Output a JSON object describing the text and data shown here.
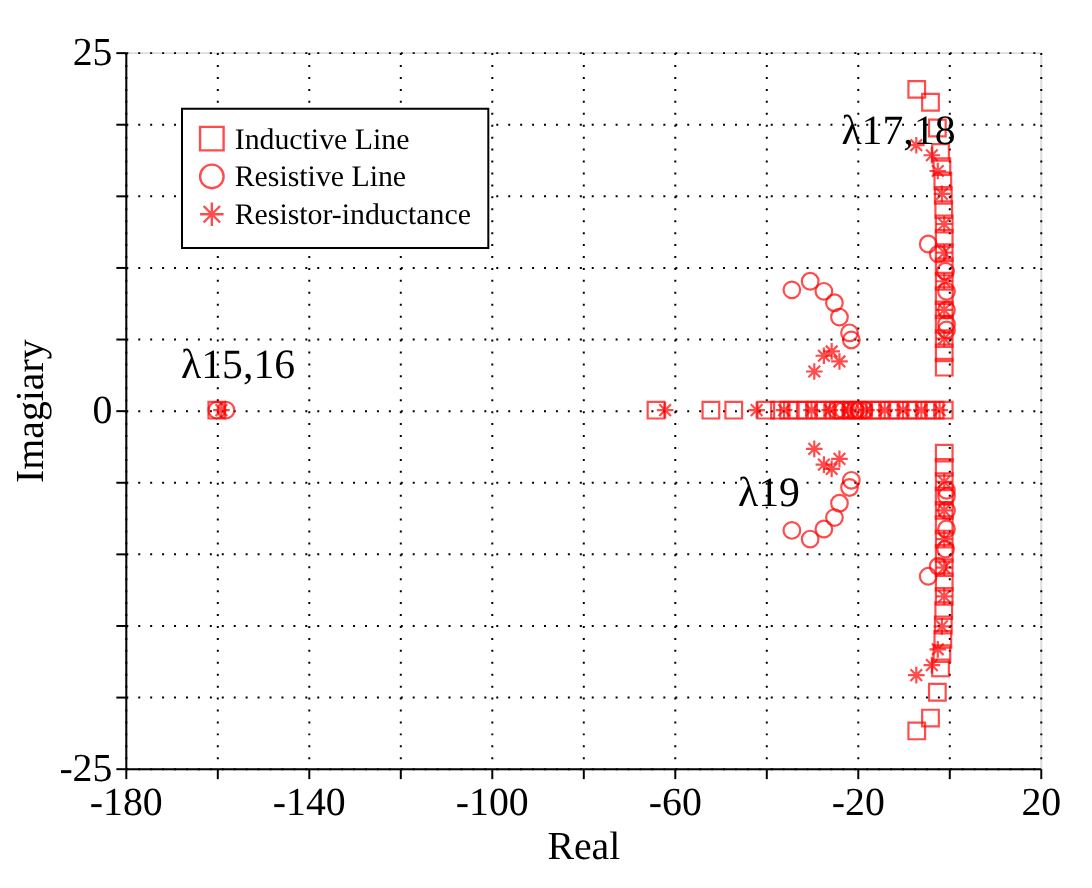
{
  "chart_data": {
    "type": "scatter",
    "xlabel": "Real",
    "ylabel": "Imagiary",
    "xlim": [
      -180,
      20
    ],
    "ylim": [
      -25,
      25
    ],
    "xticks": [
      -180,
      {
        "value": -160,
        "label": null
      },
      -140,
      {
        "value": -120,
        "label": null
      },
      -100,
      {
        "value": -80,
        "label": null
      },
      -60,
      {
        "value": -40,
        "label": null
      },
      -20,
      {
        "value": 0,
        "label": null
      },
      20
    ],
    "yticks": [
      -25,
      {
        "value": -20,
        "label": null
      },
      {
        "value": -15,
        "label": null
      },
      {
        "value": -10,
        "label": null
      },
      {
        "value": -5,
        "label": null
      },
      0,
      {
        "value": 5,
        "label": null
      },
      {
        "value": 10,
        "label": null
      },
      {
        "value": 15,
        "label": null
      },
      {
        "value": 20,
        "label": null
      },
      25
    ],
    "grid": true,
    "legend": "top left",
    "annotations": [
      "λ15,16",
      "λ17,18",
      "λ19"
    ],
    "series": [
      {
        "name": "Inductive Line",
        "color": "#ff0000",
        "marker": "square",
        "x": [
          -160,
          -64,
          -52,
          -47,
          -40,
          -37,
          -35,
          -33,
          -31,
          -29,
          -27,
          -25,
          -23,
          -21,
          -19,
          -17,
          -15,
          -13,
          -11,
          -9,
          -7,
          -5,
          -3,
          -1,
          -7,
          -4,
          -2.5,
          -1.8,
          -1.5,
          -1.3,
          -1.2,
          -1.1,
          -1,
          -1,
          -1,
          -1,
          -1,
          -1,
          -1,
          -1,
          -1,
          -1,
          -1,
          -7,
          -4,
          -2.5,
          -1.8,
          -1.5,
          -1.3,
          -1.2,
          -1.1,
          -1,
          -1,
          -1,
          -1,
          -1,
          -1,
          -1,
          -1,
          -1,
          -1,
          -1
        ],
        "values": [
          0,
          0,
          0,
          0,
          0,
          0,
          0,
          0,
          0,
          0,
          0,
          0,
          0,
          0,
          0,
          0,
          0,
          0,
          0,
          0,
          0,
          0,
          0,
          0,
          22.4,
          21.5,
          19.7,
          18,
          17,
          16,
          15,
          14,
          13,
          12,
          11,
          10,
          9,
          8,
          7,
          6,
          5,
          4,
          3,
          -22.4,
          -21.5,
          -19.7,
          -18,
          -17,
          -16,
          -15,
          -14,
          -13,
          -12,
          -11,
          -10,
          -9,
          -8,
          -7,
          -6,
          -5,
          -4,
          -3
        ]
      },
      {
        "name": "Resistive Line",
        "color": "#ff0000",
        "marker": "circle",
        "x": [
          -160,
          -158,
          -24.5,
          -23,
          -21.5,
          -20.5,
          -19.6,
          -18.5,
          -34.3,
          -30.3,
          -27.3,
          -25,
          -23.9,
          -21.7,
          -21.3,
          -4.5,
          -2.3,
          -0.7,
          -0.5,
          -0.5,
          -0.5,
          -0.5,
          -34.3,
          -30.3,
          -27.3,
          -25,
          -23.9,
          -21.7,
          -21.3,
          -4.5,
          -2.3,
          -0.7,
          -0.5,
          -0.5,
          -0.5,
          -0.5
        ],
        "values": [
          0,
          0,
          0,
          0,
          0,
          0,
          0,
          0,
          8.4,
          9,
          8.3,
          7.5,
          6.5,
          5.4,
          4.9,
          11.6,
          10.9,
          9.7,
          8.3,
          7,
          6,
          5.6,
          -8.4,
          -9,
          -8.3,
          -7.5,
          -6.5,
          -5.4,
          -4.9,
          -11.6,
          -10.9,
          -9.7,
          -8.3,
          -7,
          -6,
          -5.6
        ]
      },
      {
        "name": "Resistor-inductance",
        "color": "#ff0000",
        "marker": "cross",
        "x": [
          -159,
          -62,
          -42,
          -36,
          -30,
          -26,
          -22,
          -18,
          -14,
          -10,
          -6,
          -2,
          -29.4,
          -27.3,
          -25.6,
          -23.9,
          -7.1,
          -3.7,
          -2.4,
          -1.5,
          -1,
          -1,
          -1,
          -1,
          -1,
          -29.4,
          -27.3,
          -25.6,
          -23.9,
          -7.1,
          -3.7,
          -2.4,
          -1.5,
          -1,
          -1,
          -1,
          -1,
          -1
        ],
        "values": [
          0,
          0,
          0,
          0,
          0,
          0,
          0,
          0,
          0,
          0,
          0,
          0,
          2.7,
          3.8,
          4.1,
          3.4,
          18.5,
          17.8,
          16.7,
          15.1,
          13,
          11,
          9,
          7,
          5,
          -2.7,
          -3.8,
          -4.1,
          -3.4,
          -18.5,
          -17.8,
          -16.7,
          -15.1,
          -13,
          -11,
          -9,
          -7,
          -5
        ]
      }
    ]
  }
}
